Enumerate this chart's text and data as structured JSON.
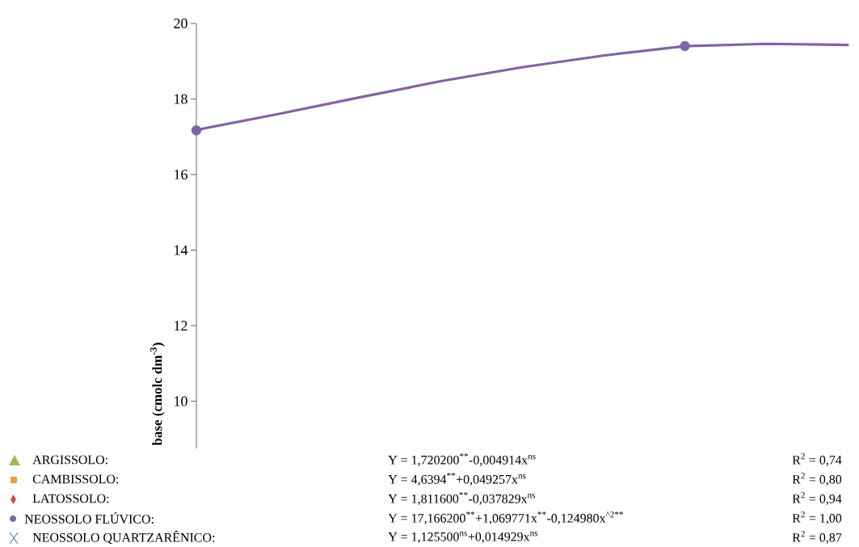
{
  "chart_data": {
    "type": "line",
    "ylabel": "base (cmolc dm$^{-3}$)",
    "ylim": [
      8.75,
      20
    ],
    "yticks": [
      10,
      12,
      14,
      16,
      18,
      20
    ],
    "categories": [
      null,
      null,
      null,
      null,
      null,
      null,
      null,
      null,
      null
    ],
    "tick_labels": "y",
    "grid": false,
    "series": [
      {
        "type": "line",
        "color": "#8064a2",
        "marker": "none",
        "values": [
          17.18,
          17.6,
          18.04,
          18.47,
          18.84,
          19.15,
          19.4,
          19.46,
          19.43
        ]
      },
      {
        "type": "scatter",
        "color": "#8064a2",
        "marker": "circle",
        "values": [
          17.17,
          null,
          null,
          null,
          null,
          null,
          19.4,
          null,
          null
        ]
      }
    ],
    "annotations": [
      "ARGISSOLO:",
      "Y = 1,720200$^{**}$-0,004914x$^{ns}$",
      "R$^{2}$ = 0,74",
      "CAMBISSOLO:",
      "Y = 4,6394$^{**}$+0,049257x$^{ns}$",
      "R$^{2}$ = 0,80",
      "LATOSSOLO:",
      "Y = 1,811600$^{**}$-0,037829x$^{ns}$",
      "R$^{2}$ = 0,94",
      "NEOSSOLO FLÚVICO:",
      "Y = 17,166200$^{**}$+1,069771x$^{**}$-0,124980x$^{^2**}$",
      "R$^{2}$ = 1,00",
      "NEOSSOLO QUARTZARÊNICO:",
      "Y = 1,125500$^{ns}$+0,014929x$^{ns}$",
      "R$^{2}$ = 0,87"
    ]
  }
}
